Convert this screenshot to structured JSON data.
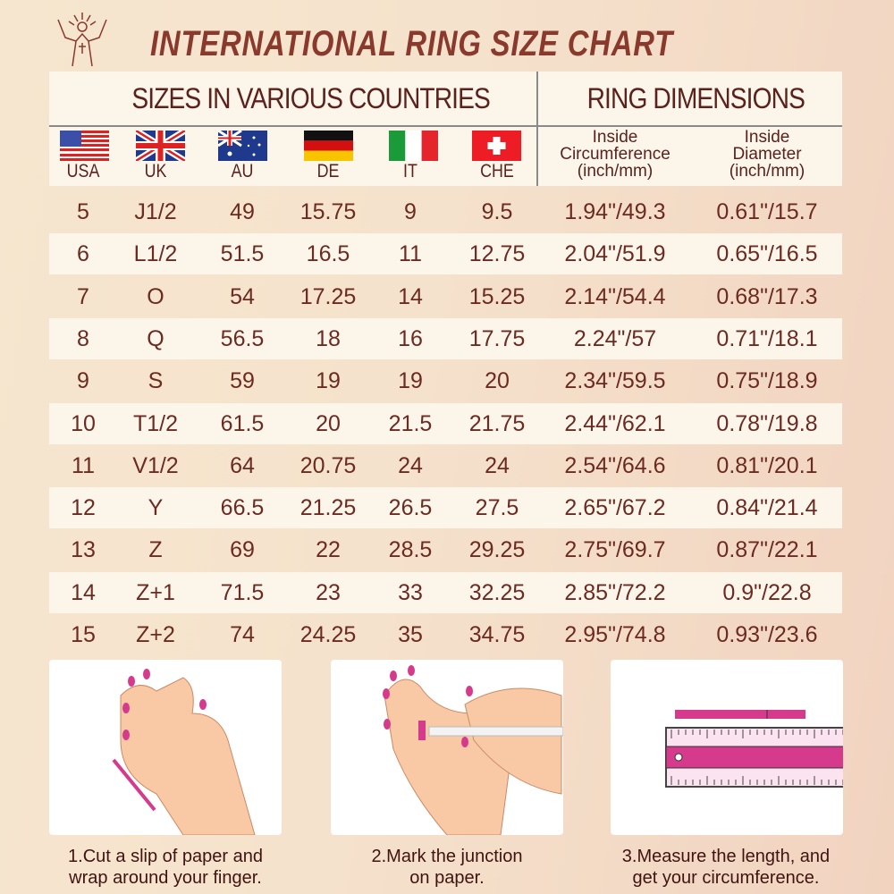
{
  "title": "INTERNATIONAL RING SIZE CHART",
  "logo": "jesus-figure-logo",
  "header": {
    "left": "SIZES IN VARIOUS COUNTRIES",
    "right": "RING DIMENSIONS",
    "countries": [
      "USA",
      "UK",
      "AU",
      "DE",
      "IT",
      "CHE"
    ],
    "dims": [
      {
        "l1": "Inside",
        "l2": "Circumference",
        "l3": "(inch/mm)"
      },
      {
        "l1": "Inside",
        "l2": "Diameter",
        "l3": "(inch/mm)"
      }
    ]
  },
  "rows": [
    [
      "5",
      "J1/2",
      "49",
      "15.75",
      "9",
      "9.5",
      "1.94\"/49.3",
      "0.61\"/15.7"
    ],
    [
      "6",
      "L1/2",
      "51.5",
      "16.5",
      "11",
      "12.75",
      "2.04\"/51.9",
      "0.65\"/16.5"
    ],
    [
      "7",
      "O",
      "54",
      "17.25",
      "14",
      "15.25",
      "2.14\"/54.4",
      "0.68\"/17.3"
    ],
    [
      "8",
      "Q",
      "56.5",
      "18",
      "16",
      "17.75",
      "2.24\"/57",
      "0.71\"/18.1"
    ],
    [
      "9",
      "S",
      "59",
      "19",
      "19",
      "20",
      "2.34\"/59.5",
      "0.75\"/18.9"
    ],
    [
      "10",
      "T1/2",
      "61.5",
      "20",
      "21.5",
      "21.75",
      "2.44\"/62.1",
      "0.78\"/19.8"
    ],
    [
      "11",
      "V1/2",
      "64",
      "20.75",
      "24",
      "24",
      "2.54\"/64.6",
      "0.81\"/20.1"
    ],
    [
      "12",
      "Y",
      "66.5",
      "21.25",
      "26.5",
      "27.5",
      "2.65\"/67.2",
      "0.84\"/21.4"
    ],
    [
      "13",
      "Z",
      "69",
      "22",
      "28.5",
      "29.25",
      "2.75\"/69.7",
      "0.87\"/22.1"
    ],
    [
      "14",
      "Z+1",
      "71.5",
      "23",
      "33",
      "32.25",
      "2.85\"/72.2",
      "0.9\"/22.8"
    ],
    [
      "15",
      "Z+2",
      "74",
      "24.25",
      "35",
      "34.75",
      "2.95\"/74.8",
      "0.93\"/23.6"
    ]
  ],
  "steps": [
    {
      "l1": "1.Cut a slip of paper and",
      "l2": "wrap around your finger."
    },
    {
      "l1": "2.Mark the junction",
      "l2": "on paper."
    },
    {
      "l1": "3.Measure the length, and",
      "l2": "get your circumference."
    }
  ],
  "colors": {
    "title": "#8a3a2c",
    "text": "#6b2a22",
    "accent": "#d63a8c"
  }
}
